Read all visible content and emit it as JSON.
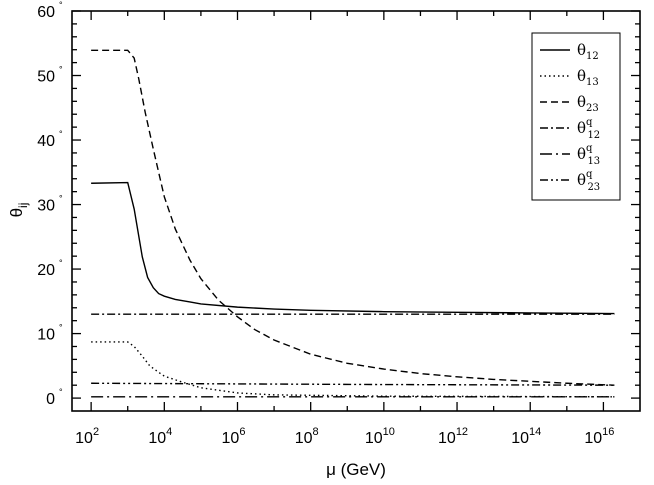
{
  "chart_data": {
    "type": "line",
    "title": "",
    "xlabel": "μ (GeV)",
    "ylabel_main": "θ",
    "ylabel_sub": "ij",
    "x_scale": "log10",
    "xlim": [
      30,
      1e+17
    ],
    "ylim": [
      -2,
      60
    ],
    "x_tick_labels": [
      {
        "x": 100.0,
        "base": "10",
        "exp": "2"
      },
      {
        "x": 10000.0,
        "base": "10",
        "exp": "4"
      },
      {
        "x": 1000000.0,
        "base": "10",
        "exp": "6"
      },
      {
        "x": 100000000.0,
        "base": "10",
        "exp": "8"
      },
      {
        "x": 10000000000.0,
        "base": "10",
        "exp": "10"
      },
      {
        "x": 1000000000000.0,
        "base": "10",
        "exp": "12"
      },
      {
        "x": 100000000000000.0,
        "base": "10",
        "exp": "14"
      },
      {
        "x": 1e+16,
        "base": "10",
        "exp": "16"
      }
    ],
    "y_tick_labels": [
      {
        "y": 0,
        "text": "0"
      },
      {
        "y": 10,
        "text": "10"
      },
      {
        "y": 20,
        "text": "20"
      },
      {
        "y": 30,
        "text": "30"
      },
      {
        "y": 40,
        "text": "40"
      },
      {
        "y": 50,
        "text": "50"
      },
      {
        "y": 60,
        "text": "60"
      }
    ],
    "degree_symbol": "°",
    "legend_position": "top-right",
    "series": [
      {
        "name": "θ",
        "sub": "12",
        "sup": "",
        "dash": "",
        "x": [
          100,
          1000,
          1500,
          2500,
          3500,
          5000,
          7000,
          10000,
          20000,
          50000,
          100000,
          1000000,
          10000000,
          100000000,
          10000000000.0,
          1000000000000.0,
          100000000000000.0,
          2e+16
        ],
        "y": [
          33.3,
          33.4,
          29.3,
          21.9,
          18.7,
          17.1,
          16.2,
          15.8,
          15.3,
          14.9,
          14.6,
          14.1,
          13.8,
          13.6,
          13.4,
          13.3,
          13.2,
          13.1
        ]
      },
      {
        "name": "θ",
        "sub": "13",
        "sup": "",
        "dash": "1.5,3",
        "x": [
          100,
          1000,
          1500,
          2500,
          4000,
          7000,
          10000,
          30000,
          100000,
          1000000,
          10000000,
          10000000000.0,
          2e+16
        ],
        "y": [
          8.7,
          8.7,
          8.0,
          6.5,
          5.0,
          4.0,
          3.4,
          2.5,
          1.6,
          0.8,
          0.5,
          0.3,
          0.2
        ]
      },
      {
        "name": "θ",
        "sub": "23",
        "sup": "",
        "dash": "7,4",
        "x": [
          100,
          1000,
          1500,
          2000,
          3000,
          5000,
          7000,
          10000,
          20000,
          50000,
          100000,
          300000,
          1000000,
          3000000,
          10000000,
          100000000,
          1000000000.0,
          10000000000.0,
          100000000000.0,
          1000000000000.0,
          10000000000000.0,
          100000000000000.0,
          1000000000000000.0,
          2e+16
        ],
        "y": [
          53.9,
          53.9,
          52.7,
          49.5,
          44.3,
          38.6,
          35.0,
          31.2,
          26.2,
          21.4,
          18.5,
          15.2,
          12.6,
          10.6,
          9.0,
          6.8,
          5.4,
          4.5,
          3.8,
          3.3,
          2.9,
          2.6,
          2.3,
          2.0
        ]
      },
      {
        "name": "θ",
        "sub": "12",
        "sup": "q",
        "dash": "8,3,2,3",
        "x": [
          100,
          2e+16
        ],
        "y": [
          13.0,
          13.0
        ]
      },
      {
        "name": "θ",
        "sub": "13",
        "sup": "q",
        "dash": "12,4,2,4",
        "x": [
          100,
          2e+16
        ],
        "y": [
          0.2,
          0.2
        ]
      },
      {
        "name": "θ",
        "sub": "23",
        "sup": "q",
        "dash": "8,3,2,3,2,3",
        "x": [
          100,
          1000000,
          10000000000.0,
          2e+16
        ],
        "y": [
          2.3,
          2.2,
          2.1,
          2.0
        ]
      }
    ]
  }
}
